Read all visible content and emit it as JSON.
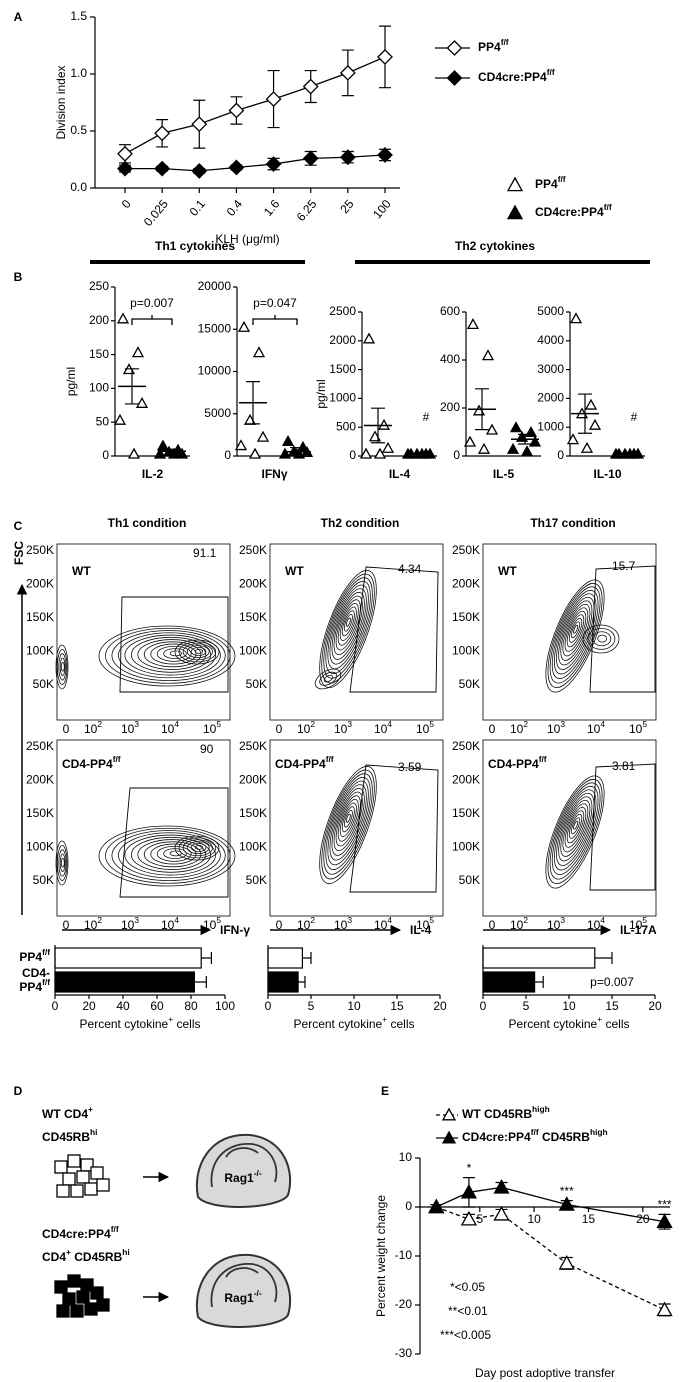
{
  "panel_letters": [
    "A",
    "B",
    "C",
    "D",
    "E"
  ],
  "chart_data": [
    {
      "type": "line",
      "ylabel": "Division index",
      "xlabel": "KLH (μg/ml)",
      "categories": [
        "0",
        "0.025",
        "0.1",
        "0.4",
        "1.6",
        "6.25",
        "25",
        "100"
      ],
      "ylim": [
        0,
        1.5
      ],
      "yticks": [
        {
          "value": 0,
          "label": "0.0"
        },
        0.5,
        {
          "value": 1,
          "label": "1.0"
        },
        1.5
      ],
      "series": [
        {
          "name": [
            "PP4",
            "f/f"
          ],
          "color": "#000000",
          "marker": "diamond",
          "marker_fill": "#ffffff",
          "dash": false,
          "values": [
            0.3,
            0.48,
            0.56,
            0.68,
            0.78,
            0.89,
            1.01,
            1.15
          ],
          "errors": [
            0.08,
            0.12,
            0.21,
            0.12,
            0.25,
            0.14,
            0.2,
            0.27
          ]
        },
        {
          "name": [
            "CD4cre:PP4",
            "f/f"
          ],
          "color": "#000000",
          "marker": "diamond",
          "marker_fill": "#000000",
          "dash": false,
          "values": [
            0.17,
            0.17,
            0.15,
            0.18,
            0.21,
            0.26,
            0.27,
            0.29
          ],
          "errors": [
            0.03,
            0.02,
            0.02,
            0.02,
            0.05,
            0.06,
            0.05,
            0.05
          ]
        }
      ]
    },
    {
      "type": "dot",
      "ylabel": "pg/ml",
      "xlabel": "IL-2",
      "ylim": [
        0,
        250
      ],
      "yticks": [
        0,
        50,
        100,
        150,
        200,
        250
      ],
      "annotation": "p=0.007",
      "series": [
        {
          "color": "#000000",
          "marker_fill": "#ffffff",
          "values": [
            200,
            150,
            125,
            75,
            50,
            0
          ],
          "mean": 103,
          "error": 26
        },
        {
          "color": "#000000",
          "marker_fill": "#000000",
          "values": [
            12,
            6,
            3,
            0,
            0,
            0
          ],
          "mean": 7,
          "error": 3
        }
      ]
    },
    {
      "type": "dot",
      "xlabel": "IFNγ",
      "ylim": [
        0,
        20000
      ],
      "yticks": [
        0,
        5000,
        10000,
        15000,
        20000
      ],
      "annotation": "p=0.047",
      "series": [
        {
          "color": "#000000",
          "marker_fill": "#ffffff",
          "values": [
            15000,
            12000,
            4000,
            2000,
            1000,
            0
          ],
          "mean": 6300,
          "error": 2500
        },
        {
          "color": "#000000",
          "marker_fill": "#000000",
          "values": [
            1500,
            800,
            300,
            200,
            0,
            0
          ],
          "mean": 500,
          "error": 500
        }
      ]
    },
    {
      "type": "dot",
      "ylabel": "pg/ml",
      "xlabel": "IL-4",
      "ylim": [
        0,
        2500
      ],
      "yticks": [
        0,
        500,
        1000,
        1500,
        2000,
        2500
      ],
      "annotation": "#",
      "series": [
        {
          "color": "#000000",
          "marker_fill": "#ffffff",
          "values": [
            2000,
            500,
            300,
            100,
            0,
            0
          ],
          "mean": 530,
          "error": 300
        },
        {
          "color": "#000000",
          "marker_fill": "#000000",
          "values": [
            0,
            0,
            0,
            0,
            0,
            0
          ],
          "mean": 0,
          "error": 0
        }
      ]
    },
    {
      "type": "dot",
      "xlabel": "IL-5",
      "ylim": [
        0,
        600
      ],
      "yticks": [
        0,
        200,
        400,
        600
      ],
      "series": [
        {
          "color": "#000000",
          "marker_fill": "#ffffff",
          "values": [
            540,
            410,
            180,
            100,
            50,
            20
          ],
          "mean": 195,
          "error": 85
        },
        {
          "color": "#000000",
          "marker_fill": "#000000",
          "values": [
            110,
            90,
            70,
            50,
            20,
            10
          ],
          "mean": 70,
          "error": 20
        }
      ]
    },
    {
      "type": "dot",
      "xlabel": "IL-10",
      "ylim": [
        0,
        5000
      ],
      "yticks": [
        0,
        1000,
        2000,
        3000,
        4000,
        5000
      ],
      "annotation": "#",
      "series": [
        {
          "color": "#000000",
          "marker_fill": "#ffffff",
          "values": [
            4700,
            1700,
            1400,
            1000,
            500,
            200
          ],
          "mean": 1470,
          "error": 680
        },
        {
          "color": "#000000",
          "marker_fill": "#000000",
          "values": [
            0,
            0,
            0,
            0,
            0,
            0
          ],
          "mean": 0,
          "error": 0
        }
      ]
    },
    {
      "type": "hbar",
      "categories": [
        [
          "PP4",
          "f/f"
        ],
        [
          "CD4-\nPP4",
          "f/f"
        ]
      ],
      "values": [
        86,
        82
      ],
      "errors": [
        6,
        7
      ],
      "colors": [
        "#ffffff",
        "#000000"
      ],
      "xlim": [
        0,
        100
      ],
      "xticks": [
        0,
        20,
        40,
        60,
        80,
        100
      ],
      "xlabel": [
        "Percent cytokine",
        "+",
        " cells"
      ]
    },
    {
      "type": "hbar",
      "categories": [
        null,
        null
      ],
      "values": [
        4,
        3.5
      ],
      "errors": [
        1,
        0.8
      ],
      "colors": [
        "#ffffff",
        "#000000"
      ],
      "xlim": [
        0,
        20
      ],
      "xticks": [
        0,
        5,
        10,
        15,
        20
      ],
      "xlabel": [
        "Percent cytokine",
        "+",
        " cells"
      ]
    },
    {
      "type": "hbar",
      "categories": [
        null,
        null
      ],
      "values": [
        13,
        6
      ],
      "errors": [
        2,
        1
      ],
      "colors": [
        "#ffffff",
        "#000000"
      ],
      "xlim": [
        0,
        20
      ],
      "xticks": [
        0,
        5,
        10,
        15,
        20
      ],
      "xlabel": [
        "Percent cytokine",
        "+",
        " cells"
      ],
      "annotation": "p=0.007"
    },
    {
      "type": "line",
      "ylabel": "Percent weight change",
      "xlabel": "Day post adoptive transfer",
      "xlim": [
        -0.5,
        22.5
      ],
      "xticks": [
        5,
        10,
        15,
        20
      ],
      "ylim": [
        -30,
        10
      ],
      "yticks": [
        10,
        0,
        -10,
        -20,
        -30
      ],
      "series": [
        {
          "name": [
            "WT CD45RB",
            "high"
          ],
          "color": "#000000",
          "marker": "triangle",
          "marker_fill": "#ffffff",
          "dash": true,
          "x": [
            1,
            4,
            7,
            13,
            22
          ],
          "values": [
            0,
            -2.5,
            -1.5,
            -11.5,
            -21
          ],
          "errors": [
            0.5,
            1,
            1,
            1.2,
            1.2
          ]
        },
        {
          "name": [
            "CD4cre:PP4",
            "f/f",
            " CD45RB",
            "high"
          ],
          "color": "#000000",
          "marker": "triangle",
          "marker_fill": "#000000",
          "dash": false,
          "x": [
            1,
            4,
            7,
            13,
            22
          ],
          "values": [
            0,
            3,
            4,
            0.5,
            -3
          ],
          "errors": [
            0.5,
            3,
            1,
            0.8,
            1.5
          ]
        }
      ],
      "annotations": [
        {
          "x": 4,
          "text": "*"
        },
        {
          "x": 13,
          "text": "***"
        },
        {
          "x": 22,
          "text": "***"
        }
      ],
      "significance_key": [
        "*<0.05",
        "**<0.01",
        "***<0.005"
      ]
    }
  ],
  "panel_b": {
    "group_titles": [
      "Th1 cytokines",
      "Th2 cytokines"
    ],
    "legend": [
      [
        "PP4",
        "f/f"
      ],
      [
        "CD4cre:PP4",
        "f/f"
      ]
    ]
  },
  "panel_c": {
    "column_titles": [
      "Th1 condition",
      "Th2 condition",
      "Th17 condition"
    ],
    "y_axis_label": "FSC",
    "x_axis_labels": [
      "IFN-γ",
      "IL-4",
      "IL-17A"
    ],
    "yticks": [
      "250K",
      "200K",
      "150K",
      "100K",
      "50K"
    ],
    "xticks": [
      "0",
      [
        "10",
        "2"
      ],
      [
        "10",
        "3"
      ],
      [
        "10",
        "4"
      ],
      [
        "10",
        "5"
      ]
    ],
    "sample_labels": [
      "WT",
      [
        "CD4-PP4",
        "f/f"
      ]
    ],
    "gate_percentages": [
      [
        91.1,
        4.34,
        15.7
      ],
      [
        90,
        3.59,
        3.81
      ]
    ]
  },
  "panel_d": {
    "groups": [
      {
        "lines": [
          [
            "WT CD4",
            "+"
          ],
          [
            "CD45RB",
            "hi"
          ]
        ]
      },
      {
        "lines": [
          [
            "CD4cre:PP4",
            "f/f"
          ],
          [
            "CD4",
            "+",
            " CD45RB",
            "hi"
          ]
        ]
      }
    ],
    "recipient": [
      "Rag1",
      "-/-"
    ]
  }
}
